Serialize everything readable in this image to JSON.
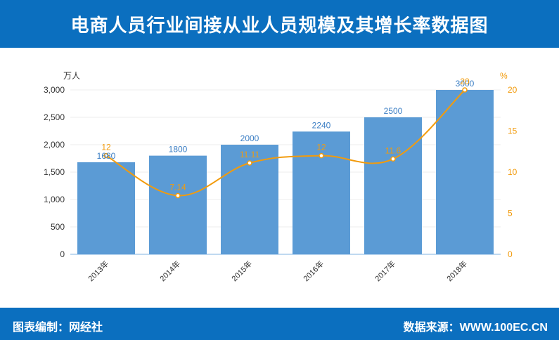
{
  "title": "电商人员行业间接从业人员规模及其增长率数据图",
  "footer": {
    "credit": "图表编制：网经社",
    "source": "数据来源：WWW.100EC.CN"
  },
  "colors": {
    "header": "#0b6fbf",
    "bar": "#5b9bd5",
    "line": "#f29b0c"
  },
  "chart_data": {
    "type": "bar",
    "title": "电商人员行业间接从业人员规模及其增长率数据图",
    "categories": [
      "2013年",
      "2014年",
      "2015年",
      "2016年",
      "2017年",
      "2018年"
    ],
    "series": [
      {
        "values": [
          1680,
          1800,
          2000,
          2240,
          2500,
          3000
        ],
        "type": "bar",
        "axis": "left"
      },
      {
        "values": [
          12,
          7.14,
          11.11,
          12,
          11.6,
          20
        ],
        "type": "line",
        "axis": "right"
      }
    ],
    "y_left": {
      "unit": "万人",
      "ylim": [
        0,
        3000
      ],
      "ticks": [
        "0",
        "500",
        "1,000",
        "1,500",
        "2,000",
        "2,500",
        "3,000"
      ],
      "tick_values": [
        0,
        500,
        1000,
        1500,
        2000,
        2500,
        3000
      ]
    },
    "y_right": {
      "unit": "%",
      "ylim": [
        0,
        20
      ],
      "ticks": [
        "0",
        "5",
        "10",
        "15",
        "20"
      ],
      "tick_values": [
        0,
        5,
        10,
        15,
        20
      ]
    },
    "bar_labels": [
      "1680",
      "1800",
      "2000",
      "2240",
      "2500",
      "3000"
    ],
    "line_labels": [
      "12",
      "7.14",
      "11.11",
      "12",
      "11.6",
      "20"
    ],
    "grid": true,
    "legend": "none"
  }
}
